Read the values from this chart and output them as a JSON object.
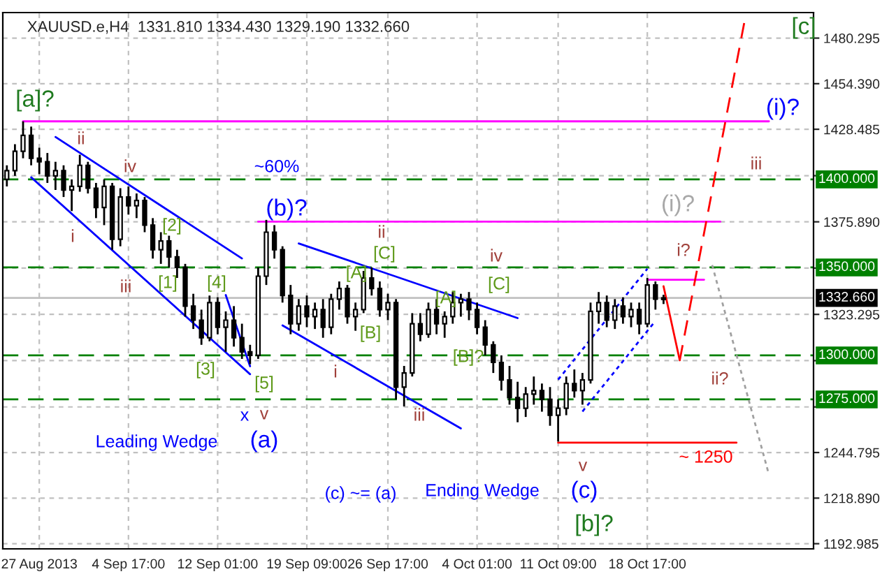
{
  "chart_data": {
    "type": "candlestick",
    "title": "XAUUSD.e,H4  1331.810 1334.430 1329.190 1332.660",
    "categories": [
      null,
      null,
      null,
      null,
      "27 Aug 2013",
      null,
      null,
      null,
      null,
      null,
      null,
      null,
      null,
      null,
      null,
      "4 Sep 17:00",
      null,
      null,
      null,
      null,
      null,
      null,
      null,
      null,
      null,
      null,
      "12 Sep 01:00",
      null,
      null,
      null,
      null,
      null,
      null,
      null,
      null,
      null,
      null,
      "19 Sep 09:00",
      null,
      null,
      null,
      null,
      null,
      null,
      null,
      null,
      null,
      "26 Sep 17:00",
      null,
      null,
      null,
      null,
      null,
      null,
      null,
      null,
      null,
      null,
      "4 Oct 01:00",
      null,
      null,
      null,
      null,
      null,
      null,
      null,
      null,
      null,
      "11 Oct 09:00",
      null,
      null,
      null,
      null,
      null,
      null,
      null,
      null,
      null,
      null,
      "18 Oct 17:00",
      null,
      null,
      null,
      null,
      null,
      null,
      null,
      null,
      null,
      null,
      null,
      null,
      null,
      null,
      null,
      null,
      null,
      null,
      null,
      null
    ],
    "ylim": [
      1190.05,
      1494.8
    ],
    "yticks": [
      {
        "value": 1192.985,
        "label": "1192.985"
      },
      {
        "value": 1218.89,
        "label": "1218.890"
      },
      {
        "value": 1244.795,
        "label": "1244.795"
      },
      {
        "value": 1270.7,
        "label": null
      },
      {
        "value": 1297.0,
        "label": null
      },
      {
        "value": 1323.295,
        "label": "1323.295"
      },
      {
        "value": 1349.6,
        "label": null
      },
      {
        "value": 1375.89,
        "label": "1375.890"
      },
      {
        "value": 1402.1,
        "label": null
      },
      {
        "value": 1428.485,
        "label": "1428.485"
      },
      {
        "value": 1454.39,
        "label": "1454.390"
      },
      {
        "value": 1480.295,
        "label": "1480.295"
      }
    ],
    "grid": true,
    "ref_lines": [
      {
        "axis": "y",
        "value": 1400,
        "label": "1400.000",
        "color": "#008000",
        "line_style": "dashed"
      },
      {
        "axis": "y",
        "value": 1350,
        "label": "1350.000",
        "color": "#008000",
        "line_style": "dashed"
      },
      {
        "axis": "y",
        "value": 1300,
        "label": "1300.000",
        "color": "#008000",
        "line_style": "dashed"
      },
      {
        "axis": "y",
        "value": 1275,
        "label": "1275.000",
        "color": "#008000",
        "line_style": "dashed"
      },
      {
        "axis": "y",
        "value": 1332.66,
        "label": "1332.660",
        "color": "#c0c0c0",
        "line_style": "solid"
      }
    ],
    "series": [
      {
        "color": "#000000",
        "ohlc": [
          [
            1400,
            1408,
            1396,
            1405
          ],
          [
            1405,
            1420,
            1402,
            1416
          ],
          [
            1416,
            1433,
            1412,
            1425
          ],
          [
            1425,
            1430,
            1408,
            1412
          ],
          [
            1412,
            1418,
            1403,
            1410
          ],
          [
            1410,
            1415,
            1398,
            1402
          ],
          [
            1402,
            1410,
            1394,
            1405
          ],
          [
            1405,
            1408,
            1390,
            1394
          ],
          [
            1394,
            1400,
            1382,
            1396
          ],
          [
            1396,
            1414,
            1393,
            1408
          ],
          [
            1408,
            1410,
            1392,
            1395
          ],
          [
            1395,
            1398,
            1378,
            1384
          ],
          [
            1384,
            1400,
            1374,
            1396
          ],
          [
            1396,
            1398,
            1360,
            1366
          ],
          [
            1366,
            1395,
            1362,
            1390
          ],
          [
            1390,
            1396,
            1380,
            1385
          ],
          [
            1385,
            1392,
            1378,
            1388
          ],
          [
            1388,
            1390,
            1370,
            1374
          ],
          [
            1374,
            1378,
            1355,
            1360
          ],
          [
            1360,
            1370,
            1352,
            1365
          ],
          [
            1365,
            1368,
            1350,
            1356
          ],
          [
            1356,
            1360,
            1344,
            1350
          ],
          [
            1350,
            1352,
            1322,
            1328
          ],
          [
            1328,
            1335,
            1315,
            1320
          ],
          [
            1320,
            1326,
            1306,
            1310
          ],
          [
            1310,
            1334,
            1308,
            1330
          ],
          [
            1330,
            1333,
            1312,
            1316
          ],
          [
            1316,
            1325,
            1302,
            1320
          ],
          [
            1320,
            1328,
            1305,
            1310
          ],
          [
            1310,
            1318,
            1298,
            1302
          ],
          [
            1302,
            1306,
            1295,
            1300
          ],
          [
            1300,
            1350,
            1298,
            1345
          ],
          [
            1345,
            1377,
            1340,
            1370
          ],
          [
            1370,
            1374,
            1355,
            1360
          ],
          [
            1360,
            1362,
            1330,
            1334
          ],
          [
            1334,
            1340,
            1312,
            1318
          ],
          [
            1318,
            1332,
            1314,
            1328
          ],
          [
            1328,
            1334,
            1316,
            1322
          ],
          [
            1322,
            1330,
            1315,
            1326
          ],
          [
            1326,
            1332,
            1310,
            1316
          ],
          [
            1316,
            1335,
            1312,
            1332
          ],
          [
            1332,
            1342,
            1326,
            1338
          ],
          [
            1338,
            1340,
            1318,
            1322
          ],
          [
            1322,
            1330,
            1314,
            1326
          ],
          [
            1326,
            1348,
            1324,
            1344
          ],
          [
            1344,
            1350,
            1334,
            1338
          ],
          [
            1338,
            1342,
            1322,
            1326
          ],
          [
            1326,
            1335,
            1320,
            1330
          ],
          [
            1330,
            1332,
            1275,
            1282
          ],
          [
            1282,
            1294,
            1271,
            1290
          ],
          [
            1290,
            1324,
            1288,
            1318
          ],
          [
            1318,
            1324,
            1308,
            1312
          ],
          [
            1312,
            1330,
            1310,
            1326
          ],
          [
            1326,
            1332,
            1312,
            1318
          ],
          [
            1318,
            1325,
            1310,
            1322
          ],
          [
            1322,
            1336,
            1318,
            1330
          ],
          [
            1330,
            1335,
            1322,
            1332
          ],
          [
            1332,
            1336,
            1320,
            1326
          ],
          [
            1326,
            1330,
            1312,
            1316
          ],
          [
            1316,
            1320,
            1300,
            1306
          ],
          [
            1306,
            1308,
            1290,
            1296
          ],
          [
            1296,
            1300,
            1280,
            1286
          ],
          [
            1286,
            1294,
            1272,
            1276
          ],
          [
            1276,
            1285,
            1262,
            1270
          ],
          [
            1270,
            1282,
            1265,
            1278
          ],
          [
            1278,
            1288,
            1272,
            1280
          ],
          [
            1280,
            1284,
            1268,
            1275
          ],
          [
            1275,
            1282,
            1260,
            1266
          ],
          [
            1266,
            1275,
            1251,
            1270
          ],
          [
            1270,
            1288,
            1266,
            1284
          ],
          [
            1284,
            1292,
            1276,
            1280
          ],
          [
            1280,
            1290,
            1272,
            1286
          ],
          [
            1286,
            1330,
            1284,
            1325
          ],
          [
            1325,
            1336,
            1318,
            1330
          ],
          [
            1330,
            1334,
            1316,
            1320
          ],
          [
            1320,
            1332,
            1315,
            1328
          ],
          [
            1328,
            1333,
            1318,
            1322
          ],
          [
            1322,
            1330,
            1316,
            1326
          ],
          [
            1326,
            1330,
            1312,
            1318
          ],
          [
            1318,
            1344,
            1316,
            1340
          ],
          [
            1340,
            1342,
            1326,
            1332
          ],
          [
            1331.81,
            1334.43,
            1329.19,
            1332.66
          ],
          null,
          null,
          null,
          null,
          null,
          null,
          null,
          null,
          null,
          null,
          null,
          null,
          null,
          null,
          null,
          null,
          null,
          null
        ]
      },
      {
        "type": "line",
        "color": "#ff00ff",
        "line_style": "solid",
        "values": [
          null,
          null,
          1433,
          null,
          null,
          null,
          null,
          null,
          null,
          null,
          null,
          null,
          null,
          null,
          null,
          null,
          null,
          null,
          null,
          null,
          null,
          null,
          null,
          null,
          null,
          null,
          null,
          null,
          null,
          null,
          null,
          null,
          null,
          null,
          null,
          null,
          null,
          null,
          null,
          null,
          null,
          null,
          null,
          null,
          null,
          null,
          null,
          null,
          null,
          null,
          null,
          null,
          null,
          null,
          null,
          null,
          null,
          null,
          null,
          null,
          null,
          null,
          null,
          null,
          null,
          null,
          null,
          null,
          null,
          null,
          null,
          null,
          null,
          null,
          null,
          null,
          null,
          null,
          null,
          null,
          null,
          null,
          null,
          null,
          null,
          null,
          null,
          null,
          null,
          null,
          null,
          null,
          null,
          null,
          1433,
          null,
          null,
          null,
          null,
          null
        ]
      },
      {
        "type": "line",
        "color": "#ff00ff",
        "line_style": "solid",
        "values": [
          null,
          null,
          null,
          null,
          null,
          null,
          null,
          null,
          null,
          null,
          null,
          null,
          null,
          null,
          null,
          null,
          null,
          null,
          null,
          null,
          null,
          null,
          null,
          null,
          null,
          null,
          null,
          null,
          null,
          null,
          null,
          1376,
          null,
          null,
          null,
          null,
          null,
          null,
          null,
          null,
          null,
          null,
          null,
          null,
          null,
          null,
          null,
          null,
          null,
          null,
          null,
          null,
          null,
          null,
          null,
          null,
          null,
          null,
          null,
          null,
          null,
          null,
          null,
          null,
          null,
          null,
          null,
          null,
          null,
          null,
          null,
          null,
          null,
          null,
          null,
          null,
          null,
          null,
          null,
          null,
          null,
          null,
          null,
          null,
          null,
          null,
          null,
          null,
          1376,
          null,
          null,
          null,
          null,
          null,
          null,
          null,
          null,
          null,
          null,
          null
        ]
      },
      {
        "type": "line",
        "color": "#ff00ff",
        "line_style": "solid",
        "values": [
          null,
          null,
          null,
          null,
          null,
          null,
          null,
          null,
          null,
          null,
          null,
          null,
          null,
          null,
          null,
          null,
          null,
          null,
          null,
          null,
          null,
          null,
          null,
          null,
          null,
          null,
          null,
          null,
          null,
          null,
          null,
          null,
          null,
          null,
          null,
          null,
          null,
          null,
          null,
          null,
          null,
          null,
          null,
          null,
          null,
          null,
          null,
          null,
          null,
          null,
          null,
          null,
          null,
          null,
          null,
          null,
          null,
          null,
          null,
          null,
          null,
          null,
          null,
          null,
          null,
          null,
          null,
          null,
          null,
          null,
          null,
          null,
          null,
          null,
          null,
          null,
          null,
          null,
          null,
          1343,
          null,
          null,
          null,
          null,
          null,
          null,
          1343,
          null,
          null,
          null,
          null,
          null,
          null,
          null,
          null,
          null,
          null,
          null,
          null,
          null
        ]
      },
      {
        "type": "line",
        "color": "#ff0000",
        "line_style": "solid",
        "values": [
          null,
          null,
          null,
          null,
          null,
          null,
          null,
          null,
          null,
          null,
          null,
          null,
          null,
          null,
          null,
          null,
          null,
          null,
          null,
          null,
          null,
          null,
          null,
          null,
          null,
          null,
          null,
          null,
          null,
          null,
          null,
          null,
          null,
          null,
          null,
          null,
          null,
          null,
          null,
          null,
          null,
          null,
          null,
          null,
          null,
          null,
          null,
          null,
          null,
          null,
          null,
          null,
          null,
          null,
          null,
          null,
          null,
          null,
          null,
          null,
          null,
          null,
          null,
          null,
          null,
          null,
          null,
          null,
          1250.4,
          null,
          null,
          null,
          null,
          null,
          null,
          null,
          null,
          null,
          null,
          null,
          null,
          null,
          null,
          null,
          null,
          null,
          null,
          null,
          null,
          null,
          1250.4,
          null,
          null,
          null,
          null,
          null,
          null,
          null,
          null,
          null
        ]
      },
      {
        "type": "line",
        "color": "#ff0000",
        "line_style": "solid",
        "values": [
          null,
          null,
          null,
          null,
          null,
          null,
          null,
          null,
          null,
          null,
          null,
          null,
          null,
          null,
          null,
          null,
          null,
          null,
          null,
          null,
          null,
          null,
          null,
          null,
          null,
          null,
          null,
          null,
          null,
          null,
          null,
          null,
          null,
          null,
          null,
          null,
          null,
          null,
          null,
          null,
          null,
          null,
          null,
          null,
          null,
          null,
          null,
          null,
          null,
          null,
          null,
          null,
          null,
          null,
          null,
          null,
          null,
          null,
          null,
          null,
          null,
          null,
          null,
          null,
          null,
          null,
          null,
          null,
          null,
          null,
          null,
          null,
          null,
          null,
          null,
          null,
          null,
          null,
          null,
          null,
          null,
          1339.3,
          null,
          1297.2,
          null,
          null,
          null,
          null,
          null,
          null,
          null,
          null,
          null,
          null,
          null,
          null,
          null,
          null,
          null,
          null
        ]
      },
      {
        "type": "line",
        "color": "#ff0000",
        "line_style": "dashed",
        "values": [
          null,
          null,
          null,
          null,
          null,
          null,
          null,
          null,
          null,
          null,
          null,
          null,
          null,
          null,
          null,
          null,
          null,
          null,
          null,
          null,
          null,
          null,
          null,
          null,
          null,
          null,
          null,
          null,
          null,
          null,
          null,
          null,
          null,
          null,
          null,
          null,
          null,
          null,
          null,
          null,
          null,
          null,
          null,
          null,
          null,
          null,
          null,
          null,
          null,
          null,
          null,
          null,
          null,
          null,
          null,
          null,
          null,
          null,
          null,
          null,
          null,
          null,
          null,
          null,
          null,
          null,
          null,
          null,
          null,
          null,
          null,
          null,
          null,
          null,
          null,
          null,
          null,
          null,
          null,
          null,
          null,
          null,
          null,
          1297.2,
          null,
          null,
          null,
          null,
          null,
          null,
          null,
          1490.1,
          null,
          null,
          null,
          null,
          null,
          null,
          null,
          null
        ]
      },
      {
        "type": "line",
        "color": "#a0a0a0",
        "line_style": "dotted",
        "values": [
          null,
          null,
          null,
          null,
          null,
          null,
          null,
          null,
          null,
          null,
          null,
          null,
          null,
          null,
          null,
          null,
          null,
          null,
          null,
          null,
          null,
          null,
          null,
          null,
          null,
          null,
          null,
          null,
          null,
          null,
          null,
          null,
          null,
          null,
          null,
          null,
          null,
          null,
          null,
          null,
          null,
          null,
          null,
          null,
          null,
          null,
          null,
          null,
          null,
          null,
          null,
          null,
          null,
          null,
          null,
          null,
          null,
          null,
          null,
          null,
          null,
          null,
          null,
          null,
          null,
          null,
          null,
          null,
          null,
          null,
          null,
          null,
          null,
          null,
          null,
          null,
          null,
          null,
          null,
          null,
          null,
          null,
          null,
          null,
          null,
          null,
          null,
          1351.3,
          null,
          null,
          null,
          null,
          null,
          null,
          1232.2,
          null,
          null,
          null,
          null,
          null
        ]
      },
      {
        "type": "line",
        "color": "#0000ff",
        "line_style": "solid",
        "values": [
          null,
          null,
          null,
          null,
          null,
          null,
          1424.1,
          null,
          null,
          null,
          null,
          null,
          null,
          null,
          null,
          null,
          null,
          null,
          null,
          null,
          null,
          null,
          null,
          null,
          null,
          null,
          null,
          null,
          null,
          1355.1,
          null,
          null,
          null,
          null,
          null,
          null,
          null,
          null,
          null,
          null,
          null,
          null,
          null,
          null,
          null,
          null,
          null,
          null,
          null,
          null,
          null,
          null,
          null,
          null,
          null,
          null,
          null,
          null,
          null,
          null,
          null,
          null,
          null,
          null,
          null,
          null,
          null,
          null,
          null,
          null,
          null,
          null,
          null,
          null,
          null,
          null,
          null,
          null,
          null,
          null,
          null,
          null,
          null,
          null,
          null,
          null,
          null,
          null,
          null,
          null,
          null,
          null,
          null,
          null,
          null,
          null,
          null,
          null,
          null,
          null
        ]
      },
      {
        "type": "line",
        "color": "#0000ff",
        "line_style": "solid",
        "values": [
          null,
          null,
          null,
          1401.2,
          null,
          null,
          null,
          null,
          null,
          null,
          null,
          null,
          null,
          null,
          null,
          null,
          null,
          null,
          null,
          null,
          null,
          null,
          null,
          null,
          null,
          null,
          null,
          null,
          null,
          null,
          1289.3,
          null,
          null,
          null,
          null,
          null,
          null,
          null,
          null,
          null,
          null,
          null,
          null,
          null,
          null,
          null,
          null,
          null,
          null,
          null,
          null,
          null,
          null,
          null,
          null,
          null,
          null,
          null,
          null,
          null,
          null,
          null,
          null,
          null,
          null,
          null,
          null,
          null,
          null,
          null,
          null,
          null,
          null,
          null,
          null,
          null,
          null,
          null,
          null,
          null,
          null,
          null,
          null,
          null,
          null,
          null,
          null,
          null,
          null,
          null,
          null,
          null,
          null,
          null,
          null,
          null,
          null,
          null,
          null,
          null
        ]
      },
      {
        "type": "line",
        "color": "#0000ff",
        "line_style": "solid",
        "values": [
          null,
          null,
          null,
          null,
          null,
          null,
          null,
          null,
          null,
          null,
          null,
          null,
          null,
          null,
          null,
          null,
          null,
          null,
          null,
          null,
          null,
          null,
          null,
          null,
          null,
          null,
          null,
          1334.3,
          null,
          null,
          1293.8,
          null,
          null,
          null,
          null,
          null,
          null,
          null,
          null,
          null,
          null,
          null,
          null,
          null,
          null,
          null,
          null,
          null,
          null,
          null,
          null,
          null,
          null,
          null,
          null,
          null,
          null,
          null,
          null,
          null,
          null,
          null,
          null,
          null,
          null,
          null,
          null,
          null,
          null,
          null,
          null,
          null,
          null,
          null,
          null,
          null,
          null,
          null,
          null,
          null,
          null,
          null,
          null,
          null,
          null,
          null,
          null,
          null,
          null,
          null,
          null,
          null,
          null,
          null,
          null,
          null,
          null,
          null,
          null,
          null
        ]
      },
      {
        "type": "line",
        "color": "#0000ff",
        "line_style": "solid",
        "values": [
          null,
          null,
          null,
          null,
          null,
          null,
          null,
          null,
          null,
          null,
          null,
          null,
          null,
          null,
          null,
          null,
          null,
          null,
          null,
          null,
          null,
          null,
          null,
          null,
          null,
          null,
          null,
          null,
          null,
          null,
          null,
          null,
          null,
          null,
          null,
          null,
          1363.6,
          null,
          null,
          null,
          null,
          null,
          null,
          null,
          null,
          null,
          null,
          null,
          null,
          null,
          null,
          null,
          null,
          null,
          null,
          null,
          null,
          null,
          null,
          null,
          null,
          null,
          null,
          1321.2,
          null,
          null,
          null,
          null,
          null,
          null,
          null,
          null,
          null,
          null,
          null,
          null,
          null,
          null,
          null,
          null,
          null,
          null,
          null,
          null,
          null,
          null,
          null,
          null,
          null,
          null,
          null,
          null,
          null,
          null,
          null,
          null,
          null,
          null,
          null,
          null
        ]
      },
      {
        "type": "line",
        "color": "#0000ff",
        "line_style": "solid",
        "values": [
          null,
          null,
          null,
          null,
          null,
          null,
          null,
          null,
          null,
          null,
          null,
          null,
          null,
          null,
          null,
          null,
          null,
          null,
          null,
          null,
          null,
          null,
          null,
          null,
          null,
          null,
          null,
          null,
          null,
          null,
          null,
          null,
          null,
          null,
          1317,
          null,
          null,
          null,
          null,
          null,
          null,
          null,
          null,
          null,
          null,
          null,
          null,
          null,
          null,
          null,
          null,
          null,
          null,
          null,
          null,
          null,
          1258.5,
          null,
          null,
          null,
          null,
          null,
          null,
          null,
          null,
          null,
          null,
          null,
          null,
          null,
          null,
          null,
          null,
          null,
          null,
          null,
          null,
          null,
          null,
          null,
          null,
          null,
          null,
          null,
          null,
          null,
          null,
          null,
          null,
          null,
          null,
          null,
          null,
          null,
          null,
          null,
          null,
          null,
          null,
          null
        ]
      },
      {
        "type": "line",
        "color": "#0000ff",
        "line_style": "dotted",
        "values": [
          null,
          null,
          null,
          null,
          null,
          null,
          null,
          null,
          null,
          null,
          null,
          null,
          null,
          null,
          null,
          null,
          null,
          null,
          null,
          null,
          null,
          null,
          null,
          null,
          null,
          null,
          null,
          null,
          null,
          null,
          null,
          null,
          null,
          null,
          null,
          null,
          null,
          null,
          null,
          null,
          null,
          null,
          null,
          null,
          null,
          null,
          null,
          null,
          null,
          null,
          null,
          null,
          null,
          null,
          null,
          null,
          null,
          null,
          null,
          null,
          null,
          null,
          null,
          null,
          null,
          null,
          null,
          null,
          1286.2,
          null,
          null,
          null,
          null,
          null,
          null,
          null,
          null,
          null,
          null,
          1349.2,
          null,
          null,
          null,
          null,
          null,
          null,
          null,
          null,
          null,
          null,
          null,
          null,
          null,
          null,
          null,
          null,
          null,
          null,
          null,
          null
        ]
      },
      {
        "type": "line",
        "color": "#0000ff",
        "line_style": "dotted",
        "values": [
          null,
          null,
          null,
          null,
          null,
          null,
          null,
          null,
          null,
          null,
          null,
          null,
          null,
          null,
          null,
          null,
          null,
          null,
          null,
          null,
          null,
          null,
          null,
          null,
          null,
          null,
          null,
          null,
          null,
          null,
          null,
          null,
          null,
          null,
          null,
          null,
          null,
          null,
          null,
          null,
          null,
          null,
          null,
          null,
          null,
          null,
          null,
          null,
          null,
          null,
          null,
          null,
          null,
          null,
          null,
          null,
          null,
          null,
          null,
          null,
          null,
          null,
          null,
          null,
          null,
          null,
          null,
          null,
          null,
          null,
          null,
          1268.1,
          null,
          null,
          null,
          null,
          null,
          null,
          null,
          null,
          1319.6,
          null,
          null,
          null,
          null,
          null,
          null,
          null,
          null,
          null,
          null,
          null,
          null,
          null,
          null,
          null,
          null,
          null,
          null,
          null
        ]
      }
    ],
    "annotations": [
      "[a]?",
      "ii",
      "iv",
      "i",
      "iii",
      "[2]",
      "[1]",
      "[4]",
      "[3]",
      "[5]",
      "x",
      "v",
      "(a)",
      "Leading Wedge",
      "~60%",
      "(b)?",
      "ii",
      "[C]",
      "[A]",
      "[B]",
      "i",
      "iii",
      "iv",
      "[C]",
      "[A]",
      "[B]?",
      "(c) ~= (a)",
      "Ending Wedge",
      "v",
      "(c)",
      "[b]?",
      "~ 1250",
      "(i)?",
      "i?",
      "ii?",
      "iii",
      "(i)?",
      "[c]"
    ]
  }
}
